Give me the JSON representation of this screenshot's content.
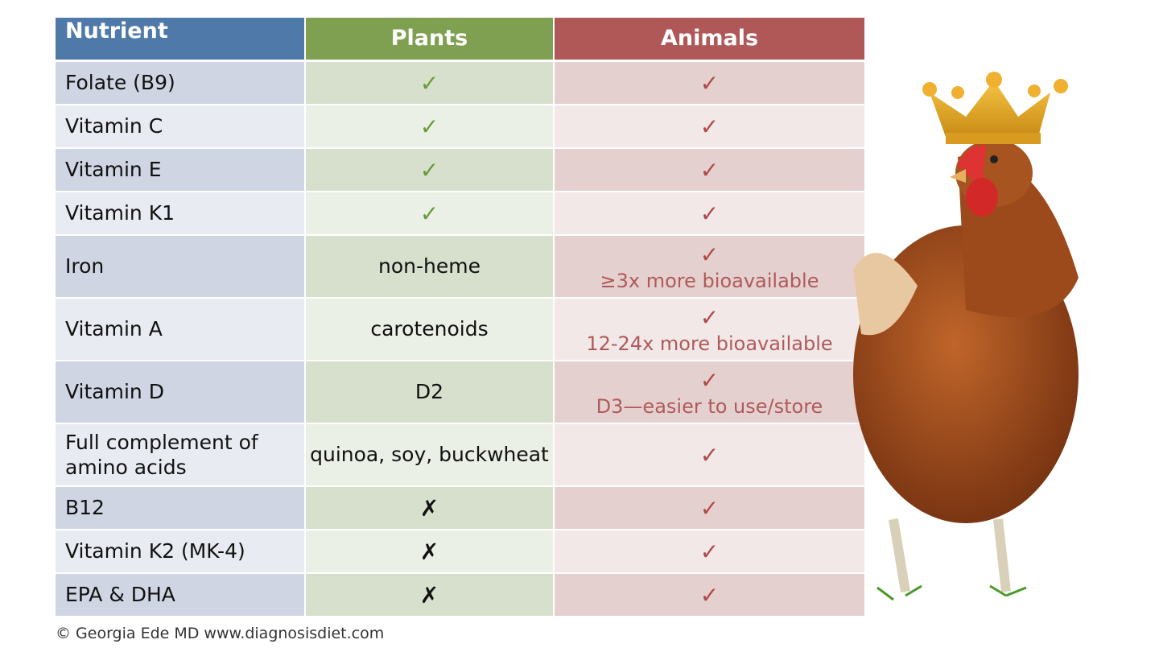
{
  "table": {
    "header": [
      "Nutrient",
      "Plants",
      "Animals"
    ],
    "rows": [
      {
        "nutrient": "Folate (B9)",
        "plants": "✓",
        "animals": "✓"
      },
      {
        "nutrient": "Vitamin C",
        "plants": "✓",
        "animals": "✓"
      },
      {
        "nutrient": "Vitamin E",
        "plants": "✓",
        "animals": "✓"
      },
      {
        "nutrient": "Vitamin K1",
        "plants": "✓",
        "animals": "✓"
      },
      {
        "nutrient": "Iron",
        "plants": "non-heme",
        "animals": "✓",
        "animals_note": "≥3x more bioavailable"
      },
      {
        "nutrient": "Vitamin A",
        "plants": "carotenoids",
        "animals": "✓",
        "animals_note": "12-24x more bioavailable"
      },
      {
        "nutrient": "Vitamin D",
        "plants": "D2",
        "animals": "✓",
        "animals_note": "D3—easier to use/store"
      },
      {
        "nutrient": "Full complement of amino acids",
        "plants": "quinoa, soy, buckwheat",
        "animals": "✓"
      },
      {
        "nutrient": "B12",
        "plants": "✗",
        "animals": "✓"
      },
      {
        "nutrient": "Vitamin K2 (MK-4)",
        "plants": "✗",
        "animals": "✓"
      },
      {
        "nutrient": "EPA & DHA",
        "plants": "✗",
        "animals": "✓"
      }
    ]
  },
  "footer": "© Georgia Ede MD www.diagnosisdiet.com"
}
